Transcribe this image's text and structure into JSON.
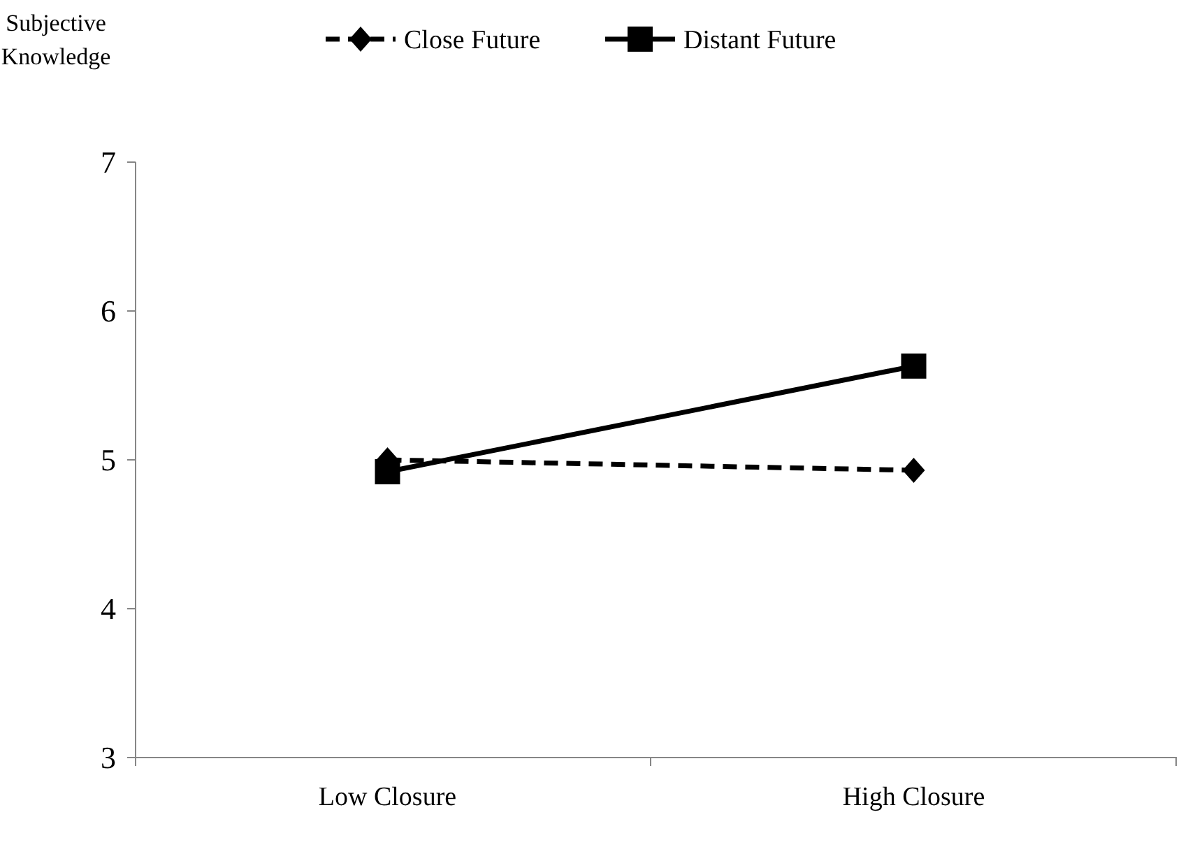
{
  "chart_data": {
    "type": "line",
    "ylabel": "Subjective Knowledge",
    "categories": [
      "Low Closure",
      "High Closure"
    ],
    "series": [
      {
        "name": "Close Future",
        "color": "#000000",
        "values": [
          5.0,
          4.93
        ],
        "marker": "diamond",
        "line_style": "dashed"
      },
      {
        "name": "Distant Future",
        "color": "#000000",
        "values": [
          4.92,
          5.63
        ],
        "marker": "square",
        "line_style": "solid"
      }
    ],
    "ylim": [
      3,
      7
    ],
    "yticks": [
      3,
      4,
      5,
      6,
      7
    ],
    "legend": "top"
  }
}
